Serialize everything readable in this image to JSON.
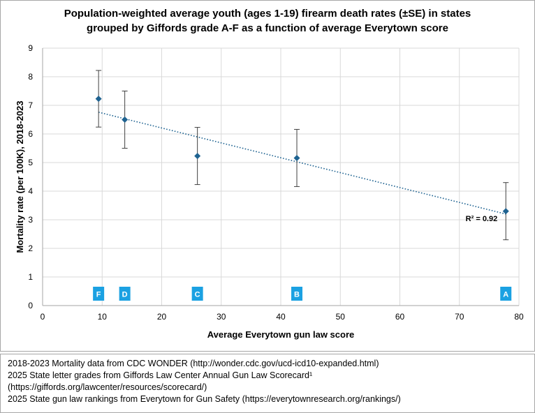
{
  "chart_data": {
    "type": "scatter",
    "title_line1": "Population-weighted average youth (ages 1-19) firearm death rates (±SE) in states",
    "title_line2": "grouped by Giffords grade A-F as a function of average Everytown score",
    "xlabel": "Average Everytown gun law score",
    "ylabel": "Mortality rate (per 100K), 2018-2023",
    "xlim": [
      0,
      80
    ],
    "ylim": [
      0,
      9
    ],
    "x_ticks": [
      0,
      10,
      20,
      30,
      40,
      50,
      60,
      70,
      80
    ],
    "y_ticks": [
      0,
      1,
      2,
      3,
      4,
      5,
      6,
      7,
      8,
      9
    ],
    "grid": "both",
    "marker_color": "#1f6391",
    "trendline_color": "#1f6391",
    "grade_box_color": "#1ba1e2",
    "points": [
      {
        "grade": "F",
        "x": 9.4,
        "y": 7.23,
        "se": 0.99
      },
      {
        "grade": "D",
        "x": 13.8,
        "y": 6.5,
        "se": 1.0
      },
      {
        "grade": "C",
        "x": 26.0,
        "y": 5.23,
        "se": 1.0
      },
      {
        "grade": "B",
        "x": 42.7,
        "y": 5.16,
        "se": 1.0
      },
      {
        "grade": "A",
        "x": 77.8,
        "y": 3.3,
        "se": 1.0
      }
    ],
    "trendline": {
      "type": "linear",
      "x": [
        9.4,
        77.8
      ],
      "y": [
        6.76,
        3.2
      ],
      "label": "R² = 0.92"
    }
  },
  "footer": {
    "line1": "2018-2023  Mortality data from CDC WONDER (http://wonder.cdc.gov/ucd-icd10-expanded.html)",
    "line2": "2025  State letter grades from Giffords Law Center Annual Gun Law Scorecard¹",
    "line3": "(https://giffords.org/lawcenter/resources/scorecard/)",
    "line4": "2025  State gun law rankings from Everytown for Gun Safety (https://everytownresearch.org/rankings/)"
  }
}
